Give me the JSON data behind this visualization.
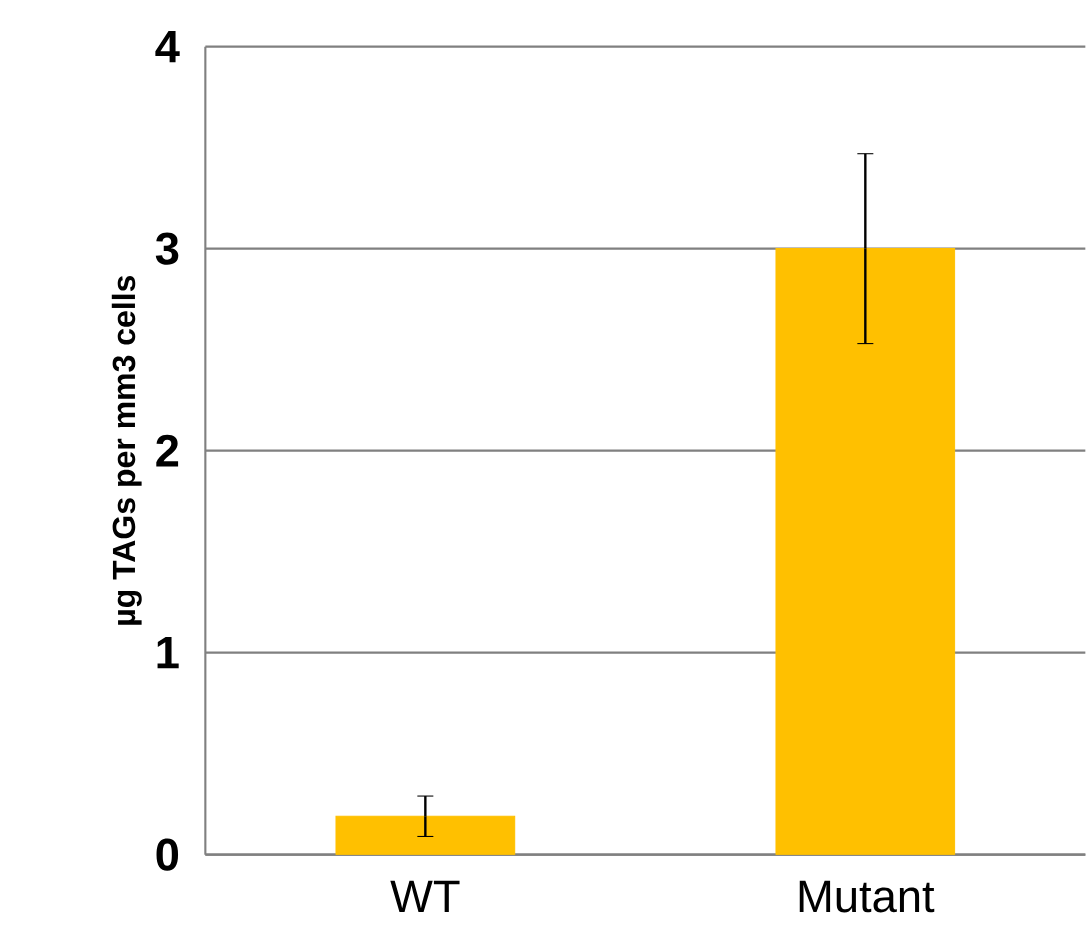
{
  "chart_data": {
    "type": "bar",
    "ylabel": "µg TAGs per mm3 cells",
    "categories": [
      "WT",
      "Mutant"
    ],
    "values": [
      0.19,
      3.0
    ],
    "errors": [
      0.1,
      0.47
    ],
    "color": "#ffc000",
    "ylim": [
      0,
      4
    ],
    "yticks": [
      0,
      1,
      2,
      3,
      4
    ],
    "grid": "y"
  }
}
